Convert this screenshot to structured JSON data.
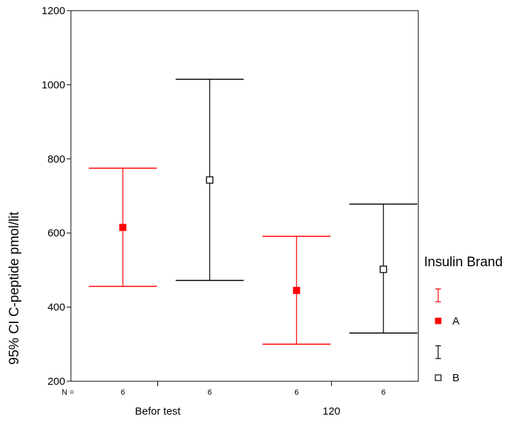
{
  "chart_data": {
    "type": "errorbar",
    "ylabel": "95% CI C-peptide pmol/lit",
    "xlabel": "",
    "ylim": [
      200,
      1200
    ],
    "yticks": [
      200,
      400,
      600,
      800,
      1000,
      1200
    ],
    "categories": [
      "Befor test",
      "120"
    ],
    "n_prefix": "N =",
    "legend": {
      "title": "Insulin Brand",
      "position": "right"
    },
    "series": [
      {
        "name": "A",
        "color": "#ff0000",
        "marker": "filled-square",
        "n": [
          "6",
          "6"
        ],
        "mean": [
          615,
          445
        ],
        "lower": [
          456,
          300
        ],
        "upper": [
          775,
          591
        ]
      },
      {
        "name": "B",
        "color": "#000000",
        "marker": "open-square",
        "n": [
          "6",
          "6"
        ],
        "mean": [
          743,
          502
        ],
        "lower": [
          472,
          330
        ],
        "upper": [
          1015,
          678
        ]
      }
    ]
  }
}
